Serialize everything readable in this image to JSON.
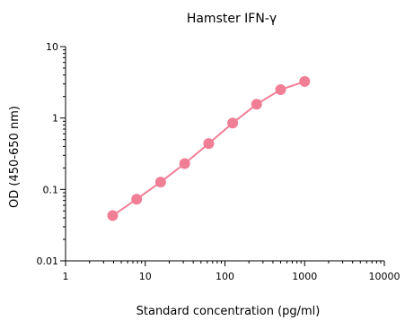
{
  "chart_data": {
    "type": "line",
    "title": "Hamster IFN-γ",
    "xlabel": "Standard concentration (pg/ml)",
    "ylabel": "OD (450-650 nm)",
    "xscale": "log",
    "yscale": "log",
    "xlim": [
      1,
      10000
    ],
    "ylim": [
      0.01,
      10
    ],
    "x_ticks": [
      1,
      10,
      100,
      1000,
      10000
    ],
    "x_tick_labels": [
      "1",
      "10",
      "100",
      "1000",
      "10000"
    ],
    "y_ticks": [
      0.01,
      0.1,
      1,
      10
    ],
    "y_tick_labels": [
      "0.01",
      "0.1",
      "1",
      "10"
    ],
    "grid": false,
    "legend": "none",
    "series": [
      {
        "color": "#f07f95",
        "x": [
          3.9,
          7.8,
          15.6,
          31.25,
          62.5,
          125,
          250,
          500,
          1000
        ],
        "y": [
          0.043,
          0.073,
          0.127,
          0.23,
          0.44,
          0.85,
          1.56,
          2.5,
          3.25
        ]
      }
    ]
  }
}
